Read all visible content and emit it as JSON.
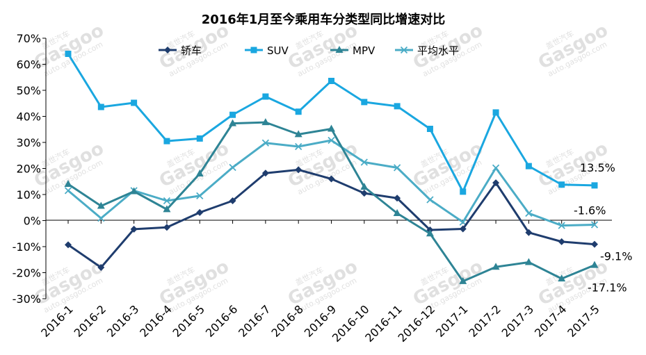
{
  "chart_data": {
    "type": "line",
    "title": "2016年1月至今乘用车分类型同比增速对比",
    "categories": [
      "2016-1",
      "2016-2",
      "2016-3",
      "2016-4",
      "2016-5",
      "2016-6",
      "2016-7",
      "2016-8",
      "2016-9",
      "2016-10",
      "2016-11",
      "2016-12",
      "2017-1",
      "2017-2",
      "2017-3",
      "2017-4",
      "2017-5"
    ],
    "ylim": [
      -30,
      70
    ],
    "yticks": [
      -30,
      -20,
      -10,
      0,
      10,
      20,
      30,
      40,
      50,
      60,
      70
    ],
    "ytick_labels": [
      "-30%",
      "-20%",
      "-10%",
      "0%",
      "10%",
      "20%",
      "30%",
      "40%",
      "50%",
      "60%",
      "70%"
    ],
    "grid": false,
    "legend": "top",
    "series": [
      {
        "name": "轿车",
        "color": "#1f3d6e",
        "marker": "diamond",
        "values": [
          -9.3,
          -18,
          -3.3,
          -2.6,
          3.1,
          7.6,
          18.2,
          19.5,
          16,
          10.5,
          8.6,
          -3.6,
          -3.2,
          14.5,
          -4.6,
          -8.1,
          -9.1
        ]
      },
      {
        "name": "SUV",
        "color": "#1aa7e0",
        "marker": "square",
        "values": [
          64,
          43.6,
          45.2,
          30.5,
          31.5,
          40.6,
          47.6,
          41.8,
          53.6,
          45.5,
          43.9,
          35.2,
          11.1,
          41.5,
          20.9,
          13.8,
          13.5
        ]
      },
      {
        "name": "MPV",
        "color": "#2e8495",
        "marker": "triangle",
        "values": [
          14,
          5.6,
          11.2,
          4.3,
          18,
          37.3,
          37.7,
          33.1,
          35.2,
          12.9,
          2.8,
          -5,
          -23.3,
          -17.8,
          -16,
          -22.3,
          -17.1
        ]
      },
      {
        "name": "平均水平",
        "color": "#4bacc6",
        "marker": "x",
        "values": [
          11.5,
          0.9,
          11.5,
          7.6,
          9.5,
          20.4,
          29.8,
          28.4,
          30.8,
          22.4,
          20.3,
          8,
          -0.6,
          20.2,
          2.8,
          -1.9,
          -1.6
        ]
      }
    ],
    "annotations": [
      {
        "text": "13.5%",
        "series": "SUV"
      },
      {
        "text": "-1.6%",
        "series": "平均水平"
      },
      {
        "text": "-9.1%",
        "series": "轿车"
      },
      {
        "text": "-17.1%",
        "series": "MPV"
      }
    ]
  },
  "watermark": {
    "brand": "Gasgoo",
    "cn": "盖世汽车",
    "url": "auto.gasgoo.com"
  }
}
